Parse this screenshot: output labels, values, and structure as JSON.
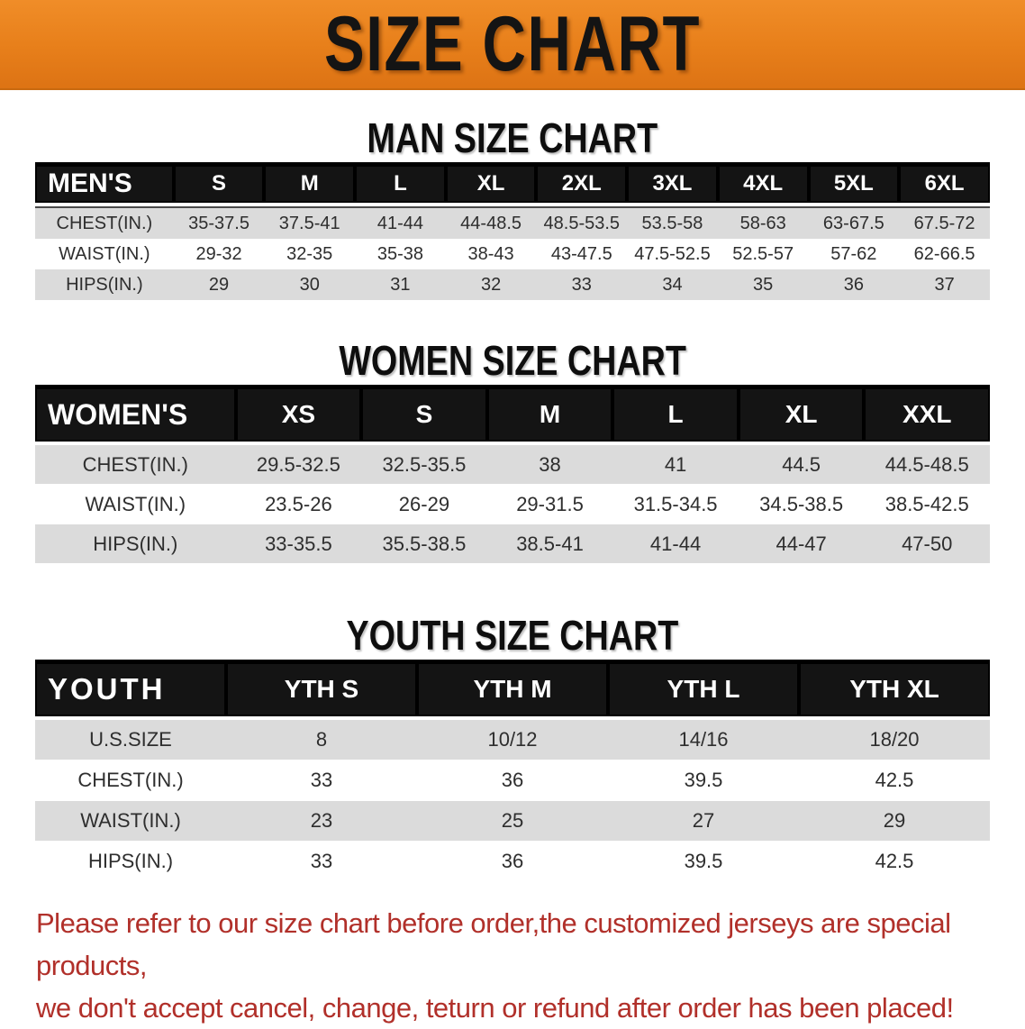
{
  "banner": {
    "title": "SIZE CHART",
    "bg_color": "#e8801b",
    "text_color": "#141414"
  },
  "colors": {
    "table_header_bg": "#141414",
    "table_header_text": "#ffffff",
    "row_alt_bg": "#dbdbdb",
    "row_bg": "#ffffff",
    "footnote_text": "#b1302a"
  },
  "sections": [
    {
      "title": "MAN SIZE CHART",
      "header_label": "MEN'S",
      "columns": [
        "S",
        "M",
        "L",
        "XL",
        "2XL",
        "3XL",
        "4XL",
        "5XL",
        "6XL"
      ],
      "rows": [
        {
          "label": "CHEST(IN.)",
          "values": [
            "35-37.5",
            "37.5-41",
            "41-44",
            "44-48.5",
            "48.5-53.5",
            "53.5-58",
            "58-63",
            "63-67.5",
            "67.5-72"
          ]
        },
        {
          "label": "WAIST(IN.)",
          "values": [
            "29-32",
            "32-35",
            "35-38",
            "38-43",
            "43-47.5",
            "47.5-52.5",
            "52.5-57",
            "57-62",
            "62-66.5"
          ]
        },
        {
          "label": "HIPS(IN.)",
          "values": [
            "29",
            "30",
            "31",
            "32",
            "33",
            "34",
            "35",
            "36",
            "37"
          ]
        }
      ]
    },
    {
      "title": "WOMEN SIZE CHART",
      "header_label": "WOMEN'S",
      "columns": [
        "XS",
        "S",
        "M",
        "L",
        "XL",
        "XXL"
      ],
      "rows": [
        {
          "label": "CHEST(IN.)",
          "values": [
            "29.5-32.5",
            "32.5-35.5",
            "38",
            "41",
            "44.5",
            "44.5-48.5"
          ]
        },
        {
          "label": "WAIST(IN.)",
          "values": [
            "23.5-26",
            "26-29",
            "29-31.5",
            "31.5-34.5",
            "34.5-38.5",
            "38.5-42.5"
          ]
        },
        {
          "label": "HIPS(IN.)",
          "values": [
            "33-35.5",
            "35.5-38.5",
            "38.5-41",
            "41-44",
            "44-47",
            "47-50"
          ]
        }
      ]
    },
    {
      "title": "YOUTH SIZE CHART",
      "header_label": "YOUTH",
      "columns": [
        "YTH S",
        "YTH M",
        "YTH L",
        "YTH XL"
      ],
      "rows": [
        {
          "label": "U.S.SIZE",
          "values": [
            "8",
            "10/12",
            "14/16",
            "18/20"
          ]
        },
        {
          "label": "CHEST(IN.)",
          "values": [
            "33",
            "36",
            "39.5",
            "42.5"
          ]
        },
        {
          "label": "WAIST(IN.)",
          "values": [
            "23",
            "25",
            "27",
            "29"
          ]
        },
        {
          "label": "HIPS(IN.)",
          "values": [
            "33",
            "36",
            "39.5",
            "42.5"
          ]
        }
      ]
    }
  ],
  "footnote": {
    "line1": "Please refer to our size chart before order,the customized jerseys are special products,",
    "line2": "we don't accept cancel, change, teturn or refund after order has been placed!"
  }
}
